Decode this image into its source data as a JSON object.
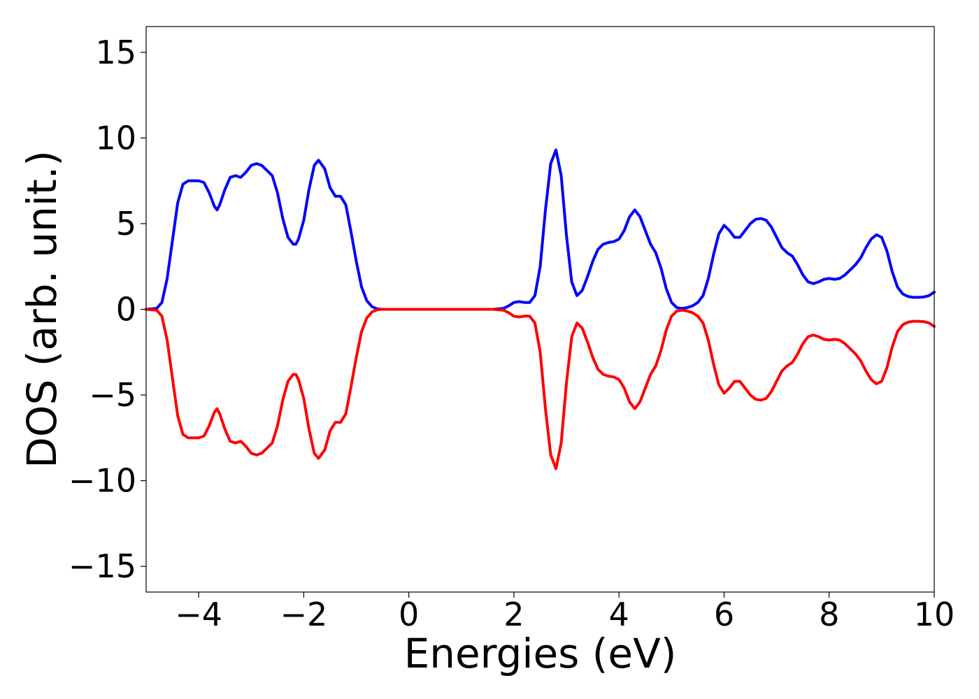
{
  "chart_data": {
    "type": "line",
    "title": "",
    "xlabel": "Energies (eV)",
    "ylabel": "DOS (arb. unit.)",
    "xlim": [
      -5,
      10
    ],
    "ylim": [
      -16.5,
      16.5
    ],
    "xticks": [
      -4,
      -2,
      0,
      2,
      4,
      6,
      8,
      10
    ],
    "xtick_labels": [
      "−4",
      "−2",
      "0",
      "2",
      "4",
      "6",
      "8",
      "10"
    ],
    "yticks": [
      15,
      10,
      5,
      0,
      -5,
      -10,
      -15
    ],
    "ytick_labels": [
      "15",
      "10",
      "5",
      "0",
      "−5",
      "−10",
      "−15"
    ],
    "grid": false,
    "legend": "none",
    "series": [
      {
        "color": "#0000ff",
        "points": [
          [
            -5.0,
            0.0
          ],
          [
            -4.8,
            0.05
          ],
          [
            -4.7,
            0.4
          ],
          [
            -4.6,
            1.8
          ],
          [
            -4.5,
            4.0
          ],
          [
            -4.4,
            6.2
          ],
          [
            -4.3,
            7.3
          ],
          [
            -4.2,
            7.5
          ],
          [
            -4.0,
            7.5
          ],
          [
            -3.9,
            7.4
          ],
          [
            -3.8,
            6.8
          ],
          [
            -3.7,
            6.0
          ],
          [
            -3.65,
            5.8
          ],
          [
            -3.6,
            6.1
          ],
          [
            -3.5,
            7.0
          ],
          [
            -3.4,
            7.7
          ],
          [
            -3.3,
            7.8
          ],
          [
            -3.2,
            7.7
          ],
          [
            -3.1,
            8.0
          ],
          [
            -3.0,
            8.4
          ],
          [
            -2.9,
            8.5
          ],
          [
            -2.8,
            8.4
          ],
          [
            -2.7,
            8.1
          ],
          [
            -2.6,
            7.8
          ],
          [
            -2.5,
            6.8
          ],
          [
            -2.4,
            5.3
          ],
          [
            -2.3,
            4.2
          ],
          [
            -2.2,
            3.8
          ],
          [
            -2.15,
            3.8
          ],
          [
            -2.1,
            4.1
          ],
          [
            -2.0,
            5.2
          ],
          [
            -1.9,
            7.0
          ],
          [
            -1.8,
            8.4
          ],
          [
            -1.72,
            8.7
          ],
          [
            -1.6,
            8.2
          ],
          [
            -1.5,
            7.1
          ],
          [
            -1.4,
            6.6
          ],
          [
            -1.3,
            6.6
          ],
          [
            -1.2,
            6.1
          ],
          [
            -1.1,
            4.5
          ],
          [
            -1.0,
            2.8
          ],
          [
            -0.9,
            1.3
          ],
          [
            -0.8,
            0.5
          ],
          [
            -0.7,
            0.15
          ],
          [
            -0.6,
            0.02
          ],
          [
            -0.5,
            0.0
          ],
          [
            0.0,
            0.0
          ],
          [
            1.0,
            0.0
          ],
          [
            1.6,
            0.0
          ],
          [
            1.8,
            0.05
          ],
          [
            1.9,
            0.2
          ],
          [
            2.0,
            0.4
          ],
          [
            2.1,
            0.45
          ],
          [
            2.2,
            0.4
          ],
          [
            2.3,
            0.4
          ],
          [
            2.4,
            0.8
          ],
          [
            2.5,
            2.5
          ],
          [
            2.6,
            5.8
          ],
          [
            2.7,
            8.5
          ],
          [
            2.8,
            9.3
          ],
          [
            2.9,
            7.8
          ],
          [
            3.0,
            4.3
          ],
          [
            3.1,
            1.6
          ],
          [
            3.2,
            0.8
          ],
          [
            3.3,
            1.1
          ],
          [
            3.4,
            1.9
          ],
          [
            3.5,
            2.8
          ],
          [
            3.6,
            3.5
          ],
          [
            3.7,
            3.8
          ],
          [
            3.8,
            3.9
          ],
          [
            3.9,
            3.95
          ],
          [
            4.0,
            4.1
          ],
          [
            4.1,
            4.6
          ],
          [
            4.2,
            5.4
          ],
          [
            4.3,
            5.8
          ],
          [
            4.4,
            5.4
          ],
          [
            4.5,
            4.6
          ],
          [
            4.6,
            3.8
          ],
          [
            4.7,
            3.3
          ],
          [
            4.8,
            2.4
          ],
          [
            4.9,
            1.2
          ],
          [
            5.0,
            0.4
          ],
          [
            5.1,
            0.1
          ],
          [
            5.2,
            0.05
          ],
          [
            5.3,
            0.1
          ],
          [
            5.4,
            0.2
          ],
          [
            5.5,
            0.4
          ],
          [
            5.6,
            0.8
          ],
          [
            5.7,
            1.8
          ],
          [
            5.8,
            3.2
          ],
          [
            5.9,
            4.4
          ],
          [
            6.0,
            4.9
          ],
          [
            6.1,
            4.6
          ],
          [
            6.2,
            4.2
          ],
          [
            6.3,
            4.2
          ],
          [
            6.4,
            4.6
          ],
          [
            6.5,
            5.0
          ],
          [
            6.6,
            5.25
          ],
          [
            6.7,
            5.3
          ],
          [
            6.8,
            5.2
          ],
          [
            6.9,
            4.8
          ],
          [
            7.0,
            4.2
          ],
          [
            7.1,
            3.6
          ],
          [
            7.2,
            3.3
          ],
          [
            7.3,
            3.1
          ],
          [
            7.4,
            2.6
          ],
          [
            7.5,
            2.0
          ],
          [
            7.6,
            1.6
          ],
          [
            7.7,
            1.5
          ],
          [
            7.8,
            1.6
          ],
          [
            7.9,
            1.75
          ],
          [
            8.0,
            1.8
          ],
          [
            8.1,
            1.75
          ],
          [
            8.2,
            1.8
          ],
          [
            8.3,
            2.0
          ],
          [
            8.4,
            2.3
          ],
          [
            8.5,
            2.6
          ],
          [
            8.6,
            3.0
          ],
          [
            8.7,
            3.6
          ],
          [
            8.8,
            4.1
          ],
          [
            8.9,
            4.35
          ],
          [
            9.0,
            4.2
          ],
          [
            9.1,
            3.4
          ],
          [
            9.2,
            2.2
          ],
          [
            9.3,
            1.3
          ],
          [
            9.4,
            0.9
          ],
          [
            9.5,
            0.75
          ],
          [
            9.6,
            0.7
          ],
          [
            9.7,
            0.7
          ],
          [
            9.8,
            0.72
          ],
          [
            9.9,
            0.8
          ],
          [
            10.0,
            1.0
          ]
        ]
      },
      {
        "color": "#ff0000",
        "points": [
          [
            -5.0,
            0.0
          ],
          [
            -4.8,
            -0.05
          ],
          [
            -4.7,
            -0.4
          ],
          [
            -4.6,
            -1.8
          ],
          [
            -4.5,
            -4.0
          ],
          [
            -4.4,
            -6.2
          ],
          [
            -4.3,
            -7.3
          ],
          [
            -4.2,
            -7.5
          ],
          [
            -4.0,
            -7.5
          ],
          [
            -3.9,
            -7.4
          ],
          [
            -3.8,
            -6.8
          ],
          [
            -3.7,
            -6.0
          ],
          [
            -3.65,
            -5.8
          ],
          [
            -3.6,
            -6.1
          ],
          [
            -3.5,
            -7.0
          ],
          [
            -3.4,
            -7.7
          ],
          [
            -3.3,
            -7.8
          ],
          [
            -3.2,
            -7.7
          ],
          [
            -3.1,
            -8.0
          ],
          [
            -3.0,
            -8.4
          ],
          [
            -2.9,
            -8.5
          ],
          [
            -2.8,
            -8.4
          ],
          [
            -2.7,
            -8.1
          ],
          [
            -2.6,
            -7.8
          ],
          [
            -2.5,
            -6.8
          ],
          [
            -2.4,
            -5.3
          ],
          [
            -2.3,
            -4.2
          ],
          [
            -2.2,
            -3.8
          ],
          [
            -2.15,
            -3.8
          ],
          [
            -2.1,
            -4.1
          ],
          [
            -2.0,
            -5.2
          ],
          [
            -1.9,
            -7.0
          ],
          [
            -1.8,
            -8.4
          ],
          [
            -1.72,
            -8.7
          ],
          [
            -1.6,
            -8.2
          ],
          [
            -1.5,
            -7.1
          ],
          [
            -1.4,
            -6.6
          ],
          [
            -1.3,
            -6.6
          ],
          [
            -1.2,
            -6.1
          ],
          [
            -1.1,
            -4.5
          ],
          [
            -1.0,
            -2.8
          ],
          [
            -0.9,
            -1.3
          ],
          [
            -0.8,
            -0.5
          ],
          [
            -0.7,
            -0.15
          ],
          [
            -0.6,
            -0.02
          ],
          [
            -0.5,
            0.0
          ],
          [
            0.0,
            0.0
          ],
          [
            1.0,
            0.0
          ],
          [
            1.6,
            0.0
          ],
          [
            1.8,
            -0.05
          ],
          [
            1.9,
            -0.2
          ],
          [
            2.0,
            -0.4
          ],
          [
            2.1,
            -0.45
          ],
          [
            2.2,
            -0.4
          ],
          [
            2.3,
            -0.4
          ],
          [
            2.4,
            -0.8
          ],
          [
            2.5,
            -2.5
          ],
          [
            2.6,
            -5.8
          ],
          [
            2.7,
            -8.5
          ],
          [
            2.8,
            -9.3
          ],
          [
            2.9,
            -7.8
          ],
          [
            3.0,
            -4.3
          ],
          [
            3.1,
            -1.6
          ],
          [
            3.2,
            -0.8
          ],
          [
            3.3,
            -1.1
          ],
          [
            3.4,
            -1.9
          ],
          [
            3.5,
            -2.8
          ],
          [
            3.6,
            -3.5
          ],
          [
            3.7,
            -3.8
          ],
          [
            3.8,
            -3.9
          ],
          [
            3.9,
            -3.95
          ],
          [
            4.0,
            -4.1
          ],
          [
            4.1,
            -4.6
          ],
          [
            4.2,
            -5.4
          ],
          [
            4.3,
            -5.8
          ],
          [
            4.4,
            -5.4
          ],
          [
            4.5,
            -4.6
          ],
          [
            4.6,
            -3.8
          ],
          [
            4.7,
            -3.3
          ],
          [
            4.8,
            -2.4
          ],
          [
            4.9,
            -1.2
          ],
          [
            5.0,
            -0.4
          ],
          [
            5.1,
            -0.1
          ],
          [
            5.2,
            -0.05
          ],
          [
            5.3,
            -0.1
          ],
          [
            5.4,
            -0.2
          ],
          [
            5.5,
            -0.4
          ],
          [
            5.6,
            -0.8
          ],
          [
            5.7,
            -1.8
          ],
          [
            5.8,
            -3.2
          ],
          [
            5.9,
            -4.4
          ],
          [
            6.0,
            -4.9
          ],
          [
            6.1,
            -4.6
          ],
          [
            6.2,
            -4.2
          ],
          [
            6.3,
            -4.2
          ],
          [
            6.4,
            -4.6
          ],
          [
            6.5,
            -5.0
          ],
          [
            6.6,
            -5.25
          ],
          [
            6.7,
            -5.3
          ],
          [
            6.8,
            -5.2
          ],
          [
            6.9,
            -4.8
          ],
          [
            7.0,
            -4.2
          ],
          [
            7.1,
            -3.6
          ],
          [
            7.2,
            -3.3
          ],
          [
            7.3,
            -3.1
          ],
          [
            7.4,
            -2.6
          ],
          [
            7.5,
            -2.0
          ],
          [
            7.6,
            -1.6
          ],
          [
            7.7,
            -1.5
          ],
          [
            7.8,
            -1.6
          ],
          [
            7.9,
            -1.75
          ],
          [
            8.0,
            -1.8
          ],
          [
            8.1,
            -1.75
          ],
          [
            8.2,
            -1.8
          ],
          [
            8.3,
            -2.0
          ],
          [
            8.4,
            -2.3
          ],
          [
            8.5,
            -2.6
          ],
          [
            8.6,
            -3.0
          ],
          [
            8.7,
            -3.6
          ],
          [
            8.8,
            -4.1
          ],
          [
            8.9,
            -4.35
          ],
          [
            9.0,
            -4.2
          ],
          [
            9.1,
            -3.4
          ],
          [
            9.2,
            -2.2
          ],
          [
            9.3,
            -1.3
          ],
          [
            9.4,
            -0.9
          ],
          [
            9.5,
            -0.75
          ],
          [
            9.6,
            -0.7
          ],
          [
            9.7,
            -0.7
          ],
          [
            9.8,
            -0.72
          ],
          [
            9.9,
            -0.8
          ],
          [
            10.0,
            -1.0
          ]
        ]
      }
    ]
  }
}
